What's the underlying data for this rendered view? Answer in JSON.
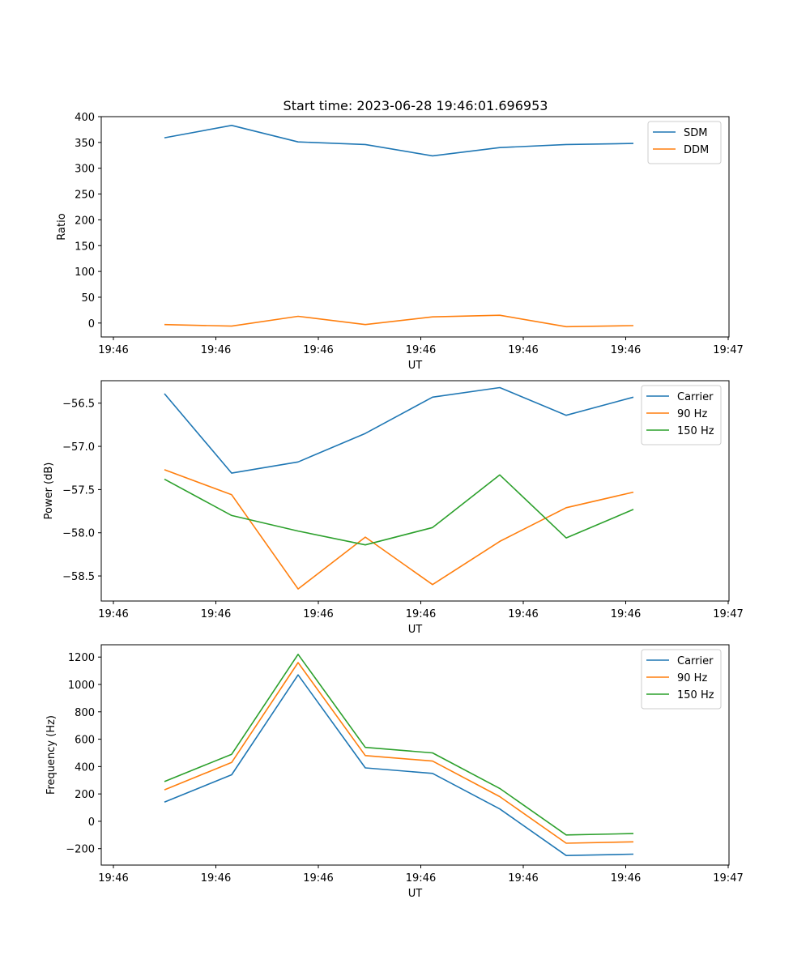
{
  "figure": {
    "title": "Start time: 2023-06-28 19:46:01.696953"
  },
  "chart_data": [
    {
      "type": "line",
      "title": "Start time: 2023-06-28 19:46:01.696953",
      "xlabel": "UT",
      "ylabel": "Ratio",
      "x_tick_labels": [
        "19:46",
        "19:46",
        "19:46",
        "19:46",
        "19:46",
        "19:46",
        "19:47"
      ],
      "y_ticks": [
        0,
        50,
        100,
        150,
        200,
        250,
        300,
        350,
        400
      ],
      "ylim": [
        -27,
        400
      ],
      "grid": false,
      "legend": "top-right",
      "series": [
        {
          "name": "SDM",
          "color": "#1f77b4",
          "values": [
            359,
            383,
            351,
            346,
            324,
            340,
            346,
            348
          ]
        },
        {
          "name": "DDM",
          "color": "#ff7f0e",
          "values": [
            -3,
            -6,
            13,
            -3,
            12,
            15,
            -7,
            -5
          ]
        }
      ]
    },
    {
      "type": "line",
      "xlabel": "UT",
      "ylabel": "Power (dB)",
      "x_tick_labels": [
        "19:46",
        "19:46",
        "19:46",
        "19:46",
        "19:46",
        "19:46",
        "19:47"
      ],
      "y_ticks": [
        -58.5,
        -58.0,
        -57.5,
        -57.0,
        -56.5
      ],
      "y_tick_labels": [
        "−58.5",
        "−58.0",
        "−57.5",
        "−57.0",
        "−56.5"
      ],
      "ylim": [
        -58.79,
        -56.24
      ],
      "grid": false,
      "legend": "top-right",
      "series": [
        {
          "name": "Carrier",
          "color": "#1f77b4",
          "values": [
            -56.39,
            -57.31,
            -57.18,
            -56.85,
            -56.43,
            -56.32,
            -56.64,
            -56.43
          ]
        },
        {
          "name": "90 Hz",
          "color": "#ff7f0e",
          "values": [
            -57.27,
            -57.56,
            -58.65,
            -58.05,
            -58.6,
            -58.1,
            -57.71,
            -57.53
          ]
        },
        {
          "name": "150 Hz",
          "color": "#2ca02c",
          "values": [
            -57.38,
            -57.8,
            -57.98,
            -58.14,
            -57.94,
            -57.33,
            -58.06,
            -57.73
          ]
        }
      ]
    },
    {
      "type": "line",
      "xlabel": "UT",
      "ylabel": "Frequency (Hz)",
      "x_tick_labels": [
        "19:46",
        "19:46",
        "19:46",
        "19:46",
        "19:46",
        "19:46",
        "19:47"
      ],
      "y_ticks": [
        -200,
        0,
        200,
        400,
        600,
        800,
        1000,
        1200
      ],
      "y_tick_labels": [
        "−200",
        "0",
        "200",
        "400",
        "600",
        "800",
        "1000",
        "1200"
      ],
      "ylim": [
        -320,
        1290
      ],
      "grid": false,
      "legend": "top-right",
      "series": [
        {
          "name": "Carrier",
          "color": "#1f77b4",
          "values": [
            140,
            340,
            1070,
            390,
            350,
            90,
            -250,
            -240
          ]
        },
        {
          "name": "90 Hz",
          "color": "#ff7f0e",
          "values": [
            230,
            430,
            1160,
            480,
            440,
            180,
            -160,
            -150
          ]
        },
        {
          "name": "150 Hz",
          "color": "#2ca02c",
          "values": [
            290,
            490,
            1220,
            540,
            500,
            240,
            -100,
            -90
          ]
        }
      ]
    }
  ]
}
